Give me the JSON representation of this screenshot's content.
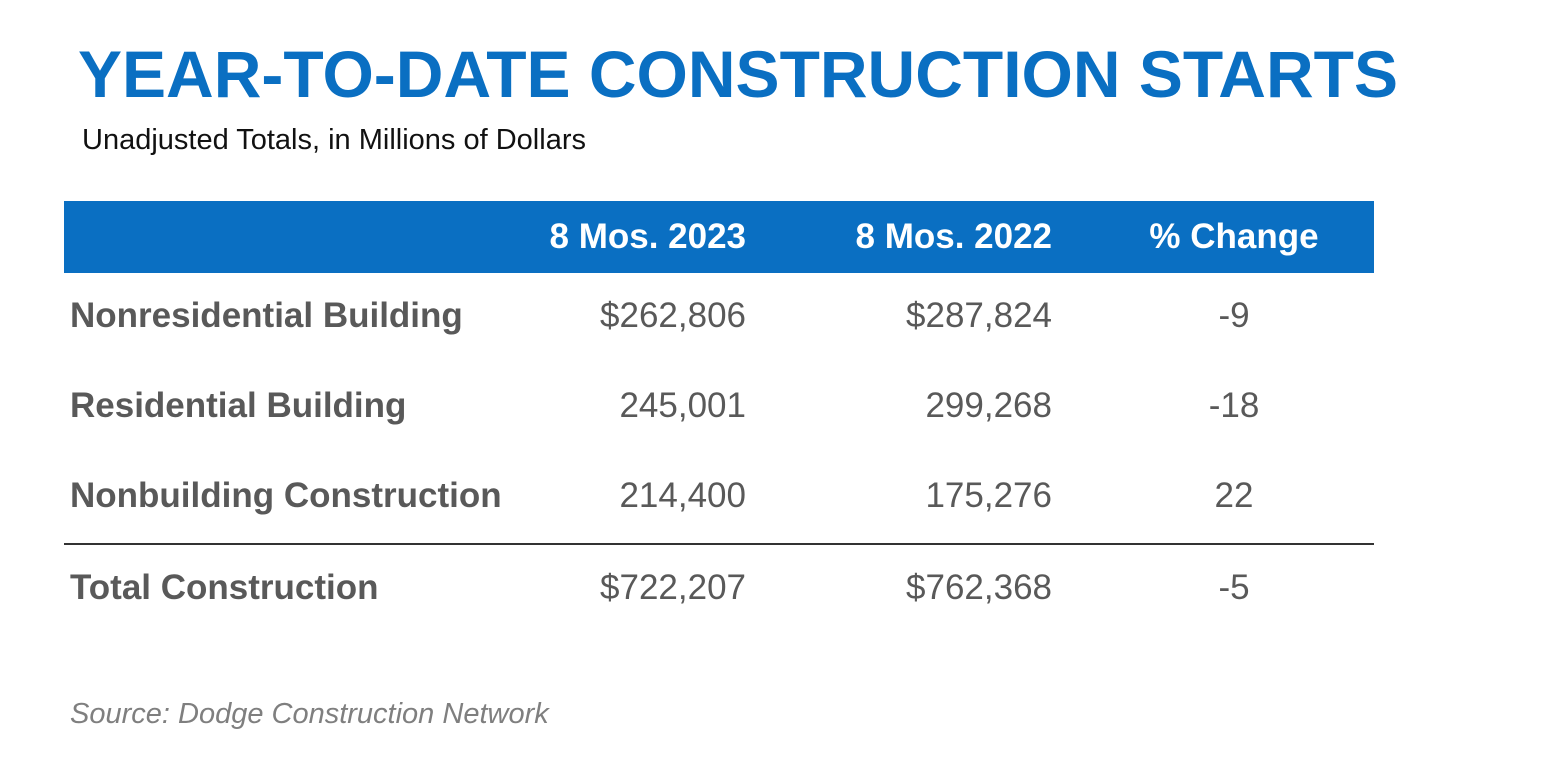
{
  "title": "YEAR-TO-DATE CONSTRUCTION STARTS",
  "subtitle": "Unadjusted Totals, in Millions of Dollars",
  "table": {
    "columns": [
      "",
      "8 Mos. 2023",
      "8 Mos. 2022",
      "% Change"
    ],
    "rows": [
      {
        "label": "Nonresidential Building",
        "v2023": "$262,806",
        "v2022": "$287,824",
        "pct": "-9"
      },
      {
        "label": "Residential Building",
        "v2023": "245,001",
        "v2022": "299,268",
        "pct": "-18"
      },
      {
        "label": "Nonbuilding Construction",
        "v2023": "214,400",
        "v2022": "175,276",
        "pct": "22"
      }
    ],
    "total": {
      "label": "Total Construction",
      "v2023": "$722,207",
      "v2022": "$762,368",
      "pct": "-5"
    }
  },
  "source": "Source: Dodge Construction Network",
  "colors": {
    "accent": "#0a6fc2",
    "header_text": "#ffffff",
    "body_text": "#595959",
    "source_text": "#7f7f7f"
  }
}
